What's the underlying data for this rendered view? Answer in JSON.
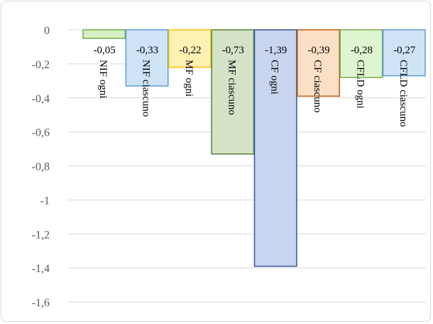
{
  "chart_data": {
    "type": "bar",
    "categories": [
      "NIF ogni",
      "NIF ciascuno",
      "MF  ogni",
      "MF  ciascuno",
      "CF ogni",
      "CF ciascuno",
      "CFLD ogni",
      "CFLD ciascuno"
    ],
    "values": [
      -0.05,
      -0.33,
      -0.22,
      -0.73,
      -1.39,
      -0.39,
      -0.28,
      -0.27
    ],
    "data_labels": [
      "-0,05",
      "-0,33",
      "-0,22",
      "-0,73",
      "-1,39",
      "-0,39",
      "-0,28",
      "-0,27"
    ],
    "yticks": [
      0,
      -0.2,
      -0.4,
      -0.6,
      -0.8,
      -1,
      -1.2,
      -1.4,
      -1.6
    ],
    "ytick_labels": [
      "0",
      "-0,2",
      "-0,4",
      "-0,6",
      "-0,8",
      "-1",
      "-1,2",
      "-1,4",
      "-1,6"
    ],
    "ylim": [
      -1.6,
      0
    ],
    "grid": true,
    "colors": [
      {
        "fill": "#d7f0c4",
        "stroke": "#70ad47"
      },
      {
        "fill": "#cfe3f7",
        "stroke": "#5b9bd5"
      },
      {
        "fill": "#fff0b3",
        "stroke": "#ffc000"
      },
      {
        "fill": "#d4e2c8",
        "stroke": "#548235"
      },
      {
        "fill": "#c9d5ee",
        "stroke": "#2f5597"
      },
      {
        "fill": "#fbe0c8",
        "stroke": "#c55a11"
      },
      {
        "fill": "#dff5cf",
        "stroke": "#70ad47"
      },
      {
        "fill": "#cfe3f7",
        "stroke": "#5b9bd5"
      }
    ]
  }
}
